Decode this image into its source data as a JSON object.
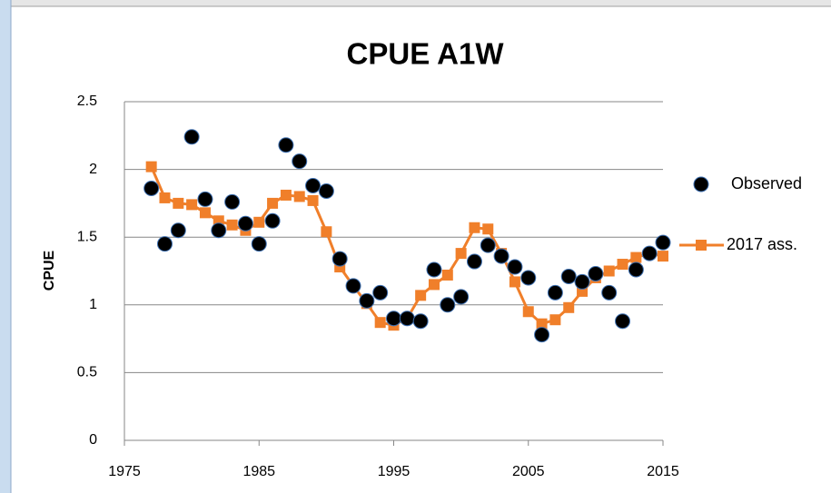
{
  "chart_data": {
    "type": "scatter-line",
    "title": "CPUE A1W",
    "y_label": "CPUE",
    "xlim": [
      1975,
      2015
    ],
    "xticks": [
      1975,
      1985,
      1995,
      2005,
      2015
    ],
    "ylim": [
      0,
      2.5
    ],
    "yticks": [
      0,
      0.5,
      1,
      1.5,
      2,
      2.5
    ],
    "grid": true,
    "legend": "right",
    "x": [
      1977,
      1978,
      1979,
      1980,
      1981,
      1982,
      1983,
      1984,
      1985,
      1986,
      1987,
      1988,
      1989,
      1990,
      1991,
      1992,
      1993,
      1994,
      1995,
      1996,
      1997,
      1998,
      1999,
      2000,
      2001,
      2002,
      2003,
      2004,
      2005,
      2006,
      2007,
      2008,
      2009,
      2010,
      2011,
      2012,
      2013,
      2014,
      2015
    ],
    "series": [
      {
        "name": "Observed",
        "color": "#000000",
        "style": "markers",
        "values": [
          1.86,
          1.45,
          1.55,
          2.24,
          1.78,
          1.55,
          1.76,
          1.6,
          1.45,
          1.62,
          2.18,
          2.06,
          1.88,
          1.84,
          1.34,
          1.14,
          1.03,
          1.09,
          0.9,
          0.9,
          0.88,
          1.26,
          1.0,
          1.06,
          1.32,
          1.44,
          1.36,
          1.28,
          1.2,
          0.78,
          1.09,
          1.21,
          1.17,
          1.23,
          1.09,
          0.88,
          1.26,
          1.38,
          1.46
        ]
      },
      {
        "name": "2017 ass.",
        "color": "#f07f2a",
        "style": "line",
        "values": [
          2.02,
          1.79,
          1.75,
          1.74,
          1.68,
          1.62,
          1.59,
          1.55,
          1.61,
          1.75,
          1.81,
          1.8,
          1.77,
          1.54,
          1.28,
          1.14,
          1.01,
          0.87,
          0.85,
          0.9,
          1.07,
          1.15,
          1.22,
          1.38,
          1.57,
          1.56,
          1.38,
          1.17,
          0.95,
          0.86,
          0.89,
          0.98,
          1.1,
          1.2,
          1.25,
          1.3,
          1.35,
          1.38,
          1.36
        ]
      }
    ]
  }
}
